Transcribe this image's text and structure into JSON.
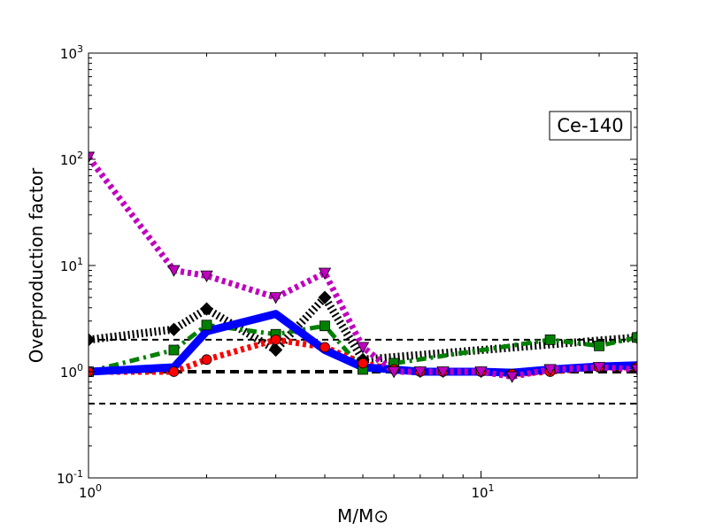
{
  "chart_data": {
    "type": "line",
    "title": "",
    "annotation": "Ce-140",
    "xlabel": "M/M⊙",
    "ylabel": "Overproduction factor",
    "xscale": "log",
    "yscale": "log",
    "xlim": [
      1,
      25
    ],
    "ylim": [
      0.1,
      1000
    ],
    "x_ticks": [
      {
        "value": 1,
        "label": "10",
        "exp": "0"
      },
      {
        "value": 10,
        "label": "10",
        "exp": "1"
      }
    ],
    "y_ticks": [
      {
        "value": 0.1,
        "label": "10",
        "exp": "-1"
      },
      {
        "value": 1,
        "label": "10",
        "exp": "0"
      },
      {
        "value": 10,
        "label": "10",
        "exp": "1"
      },
      {
        "value": 100,
        "label": "10",
        "exp": "2"
      },
      {
        "value": 1000,
        "label": "10",
        "exp": "3"
      }
    ],
    "grid": false,
    "reference_lines": [
      {
        "y": 2.0,
        "style": "thin-dashed",
        "color": "#000000"
      },
      {
        "y": 1.0,
        "style": "thick-dashed",
        "color": "#000000"
      },
      {
        "y": 0.5,
        "style": "thin-dashed",
        "color": "#000000"
      }
    ],
    "series": [
      {
        "key": "black-diamond",
        "color": "#000000",
        "marker": "diamond",
        "linestyle": "dotted",
        "x": [
          1.0,
          1.65,
          2.0,
          3.0,
          4.0,
          5.0,
          25.0
        ],
        "y": [
          2.0,
          2.5,
          3.9,
          1.6,
          5.0,
          1.3,
          2.1
        ]
      },
      {
        "key": "green-square",
        "color": "#008000",
        "marker": "square",
        "linestyle": "dashdot",
        "x": [
          1.0,
          1.65,
          2.0,
          3.0,
          4.0,
          5.0,
          6.0,
          15.0,
          20.0,
          25.0
        ],
        "y": [
          1.0,
          1.6,
          2.75,
          2.25,
          2.7,
          1.05,
          1.2,
          2.0,
          1.75,
          2.1
        ]
      },
      {
        "key": "blue-solid",
        "color": "#0000ff",
        "marker": "none",
        "linestyle": "solid",
        "x": [
          1.0,
          1.65,
          2.0,
          3.0,
          4.0,
          5.0,
          6.0,
          7.0,
          8.0,
          10.0,
          12.0,
          15.0,
          20.0,
          25.0
        ],
        "y": [
          1.0,
          1.1,
          2.4,
          3.5,
          1.6,
          1.1,
          1.05,
          1.0,
          1.0,
          1.0,
          0.98,
          1.05,
          1.12,
          1.15
        ]
      },
      {
        "key": "red-circle",
        "color": "#ff0000",
        "marker": "circle",
        "linestyle": "dotted",
        "x": [
          1.0,
          1.65,
          2.0,
          3.0,
          4.0,
          5.0,
          6.0,
          7.0,
          8.0,
          10.0,
          12.0,
          15.0,
          20.0,
          25.0
        ],
        "y": [
          1.0,
          1.0,
          1.3,
          2.0,
          1.7,
          1.2,
          1.05,
          1.0,
          1.0,
          1.0,
          0.95,
          1.0,
          1.1,
          1.1
        ]
      },
      {
        "key": "magenta-triangle",
        "color": "#bf00bf",
        "marker": "triangle-down",
        "linestyle": "dotted",
        "x": [
          1.0,
          1.65,
          2.0,
          3.0,
          4.0,
          5.0,
          6.0,
          7.0,
          8.0,
          10.0,
          12.0,
          15.0,
          20.0,
          25.0
        ],
        "y": [
          105.0,
          9.0,
          8.0,
          5.0,
          8.5,
          1.7,
          1.0,
          1.0,
          1.0,
          1.0,
          0.9,
          1.05,
          1.1,
          1.05
        ]
      }
    ]
  }
}
